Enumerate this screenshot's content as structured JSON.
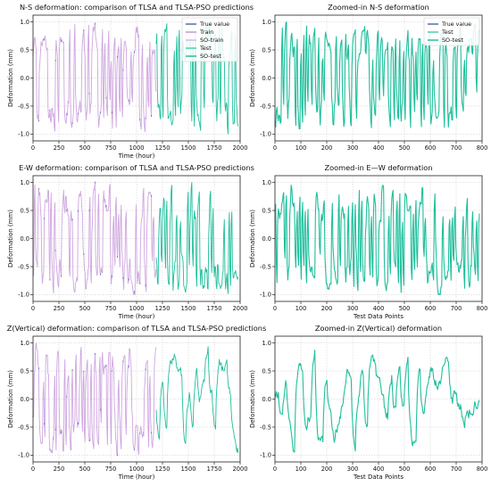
{
  "chart_data": [
    {
      "type": "line",
      "title": "N-S deformation: comparison of TLSA and TLSA-PSO predictions",
      "xlabel": "Time (hour)",
      "ylabel": "Deformation (mm)",
      "xlim": [
        0,
        2000
      ],
      "ylim": [
        -1.0,
        1.0
      ],
      "xticks": [
        0,
        250,
        500,
        750,
        1000,
        1250,
        1500,
        1750,
        2000
      ],
      "yticks": [
        -1.0,
        -0.5,
        0.0,
        0.5,
        1.0
      ],
      "grid": true,
      "legend_position": "top-right",
      "legend": [
        {
          "name": "True value",
          "color": "#4c5fa8",
          "style": "line"
        },
        {
          "name": "Train",
          "color": "#c58fd6",
          "style": "line"
        },
        {
          "name": "SO-train",
          "color": "#d9b3e6",
          "style": "line"
        },
        {
          "name": "Test",
          "color": "#3fcfa6",
          "style": "line"
        },
        {
          "name": "SO-test",
          "color": "#17b897",
          "style": "line"
        }
      ],
      "series": [
        {
          "name": "Train",
          "x_range": [
            0,
            1190
          ],
          "color": "#cfa6e0",
          "style": "oscillating",
          "peaks_near_limits": true
        },
        {
          "name": "Test",
          "x_range": [
            1190,
            1980
          ],
          "color": "#1fbf9c",
          "style": "oscillating",
          "peaks_near_limits": true
        }
      ]
    },
    {
      "type": "line",
      "title": "Zoomed-in N-S deformation",
      "xlabel": "",
      "ylabel": "Deformation (mm)",
      "xlim": [
        0,
        800
      ],
      "ylim": [
        -1.0,
        1.0
      ],
      "xticks": [
        0,
        100,
        200,
        300,
        400,
        500,
        600,
        700,
        800
      ],
      "yticks": [
        -1.0,
        -0.5,
        0.0,
        0.5,
        1.0
      ],
      "grid": true,
      "legend_position": "top-right",
      "legend": [
        {
          "name": "True value",
          "color": "#4c5fa8",
          "style": "line"
        },
        {
          "name": "Test",
          "color": "#3fcfa6",
          "style": "line"
        },
        {
          "name": "SO-test",
          "color": "#17b897",
          "style": "line"
        }
      ],
      "series": [
        {
          "name": "SO-test",
          "x_range": [
            0,
            790
          ],
          "color": "#1fbf9c",
          "style": "oscillating"
        }
      ]
    },
    {
      "type": "line",
      "title": "E-W deformation: comparison of TLSA and TLSA-PSO predictions",
      "xlabel": "Time (hour)",
      "ylabel": "Deformation (mm)",
      "xlim": [
        0,
        2000
      ],
      "ylim": [
        -1.0,
        1.0
      ],
      "xticks": [
        0,
        250,
        500,
        750,
        1000,
        1250,
        1500,
        1750,
        2000
      ],
      "yticks": [
        -1.0,
        -0.5,
        0.0,
        0.5,
        1.0
      ],
      "grid": true,
      "series": [
        {
          "name": "Train",
          "x_range": [
            0,
            1190
          ],
          "color": "#cfa6e0",
          "style": "oscillating"
        },
        {
          "name": "Test",
          "x_range": [
            1190,
            1980
          ],
          "color": "#1fbf9c",
          "style": "oscillating"
        }
      ]
    },
    {
      "type": "line",
      "title": "Zoomed-in E—W deformation",
      "xlabel": "Test Data Points",
      "ylabel": "Deformation (mm)",
      "xlim": [
        0,
        800
      ],
      "ylim": [
        -1.0,
        1.0
      ],
      "xticks": [
        0,
        100,
        200,
        300,
        400,
        500,
        600,
        700,
        800
      ],
      "yticks": [
        -1.0,
        -0.5,
        0.0,
        0.5,
        1.0
      ],
      "grid": true,
      "series": [
        {
          "name": "SO-test",
          "x_range": [
            0,
            790
          ],
          "color": "#1fbf9c",
          "style": "oscillating"
        }
      ]
    },
    {
      "type": "line",
      "title": "Z(Vertical) deformation: comparison of TLSA and TLSA-PSO predictions",
      "xlabel": "Time (hour)",
      "ylabel": "Deformation (mm)",
      "xlim": [
        0,
        2000
      ],
      "ylim": [
        -1.0,
        1.0
      ],
      "xticks": [
        0,
        250,
        500,
        750,
        1000,
        1250,
        1500,
        1750,
        2000
      ],
      "yticks": [
        -1.0,
        -0.5,
        0.0,
        0.5,
        1.0
      ],
      "grid": true,
      "series": [
        {
          "name": "Train",
          "x_range": [
            0,
            1190
          ],
          "color": "#cfa6e0",
          "style": "oscillating"
        },
        {
          "name": "Test",
          "x_range": [
            1190,
            1980
          ],
          "color": "#1fbf9c",
          "style": "smooth"
        }
      ]
    },
    {
      "type": "line",
      "title": "Zoomed-in Z(Vertical) deformation",
      "xlabel": "Test Data Points",
      "ylabel": "Deformation (mm)",
      "xlim": [
        0,
        800
      ],
      "ylim": [
        -1.0,
        1.0
      ],
      "xticks": [
        0,
        100,
        200,
        300,
        400,
        500,
        600,
        700,
        800
      ],
      "yticks": [
        -1.0,
        -0.5,
        0.0,
        0.5,
        1.0
      ],
      "grid": true,
      "series": [
        {
          "name": "SO-test",
          "x_range": [
            0,
            790
          ],
          "color": "#1fbf9c",
          "style": "smooth"
        }
      ]
    }
  ]
}
